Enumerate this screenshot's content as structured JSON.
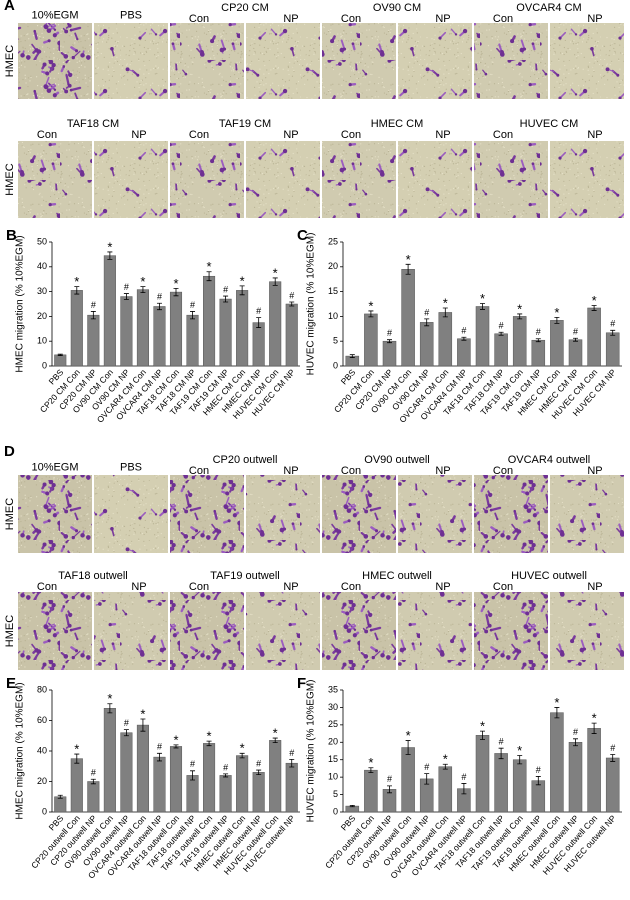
{
  "image_panels": [
    {
      "panel_label": "A",
      "rows": [
        {
          "row_label": "HMEC",
          "headers": [
            {
              "text": "10%EGM"
            },
            {
              "text": "PBS"
            },
            {
              "text": "CP20 CM",
              "sub": [
                "Con",
                "NP"
              ]
            },
            {
              "text": "OV90 CM",
              "sub": [
                "Con",
                "NP"
              ]
            },
            {
              "text": "OVCAR4 CM",
              "sub": [
                "Con",
                "NP"
              ]
            }
          ]
        },
        {
          "row_label": "HMEC",
          "headers": [
            {
              "text": "TAF18 CM",
              "sub": [
                "Con",
                "NP"
              ]
            },
            {
              "text": "TAF19 CM",
              "sub": [
                "Con",
                "NP"
              ]
            },
            {
              "text": "HMEC CM",
              "sub": [
                "Con",
                "NP"
              ]
            },
            {
              "text": "HUVEC CM",
              "sub": [
                "Con",
                "NP"
              ]
            }
          ]
        }
      ]
    },
    {
      "panel_label": "D",
      "rows": [
        {
          "row_label": "HMEC",
          "headers": [
            {
              "text": "10%EGM"
            },
            {
              "text": "PBS"
            },
            {
              "text": "CP20 outwell",
              "sub": [
                "Con",
                "NP"
              ]
            },
            {
              "text": "OV90 outwell",
              "sub": [
                "Con",
                "NP"
              ]
            },
            {
              "text": "OVCAR4 outwell",
              "sub": [
                "Con",
                "NP"
              ]
            }
          ]
        },
        {
          "row_label": "HMEC",
          "headers": [
            {
              "text": "TAF18 outwell",
              "sub": [
                "Con",
                "NP"
              ]
            },
            {
              "text": "TAF19 outwell",
              "sub": [
                "Con",
                "NP"
              ]
            },
            {
              "text": "HMEC outwell",
              "sub": [
                "Con",
                "NP"
              ]
            },
            {
              "text": "HUVEC outwell",
              "sub": [
                "Con",
                "NP"
              ]
            }
          ]
        }
      ]
    }
  ],
  "chart_data": [
    {
      "type": "bar",
      "panel_label": "B",
      "y_label": "HMEC migration (% 10%EGM)",
      "color": "#808080",
      "categories": [
        "PBS",
        "CP20 CM Con",
        "CP20 CM NP",
        "OV90 CM Con",
        "OV90 CM NP",
        "OVCAR4 CM Con",
        "OVCAR4 CM NP",
        "TAF18 CM Con",
        "TAF18 CM NP",
        "TAF19 CM Con",
        "TAF19 CM NP",
        "HMEC CM Con",
        "HMEC CM NP",
        "HUVEC CM Con",
        "HUVEC CM NP"
      ],
      "values": [
        4.5,
        30.5,
        20.5,
        44.5,
        28,
        30.8,
        24,
        29.8,
        20.5,
        36.2,
        27,
        30.5,
        17.5,
        34,
        25
      ],
      "errors": [
        0.3,
        1.5,
        1.5,
        1.5,
        1.2,
        1.2,
        1.3,
        1.5,
        1.5,
        1.8,
        1.2,
        1.8,
        2,
        1.5,
        0.8
      ],
      "markers": [
        null,
        "*",
        "#",
        "*",
        "#",
        "*",
        "#",
        "*",
        "#",
        "*",
        "#",
        "*",
        "#",
        "*",
        "#"
      ],
      "ylim": [
        0,
        50
      ],
      "yticks": [
        0,
        10,
        20,
        30,
        40,
        50
      ]
    },
    {
      "type": "bar",
      "panel_label": "C",
      "y_label": "HUVEC migration (% 10%EGM)",
      "color": "#808080",
      "categories": [
        "PBS",
        "CP20 CM Con",
        "CP20 CM NP",
        "OV90 CM Con",
        "OV90 CM NP",
        "OVCAR4 CM Con",
        "OVCAR4 CM NP",
        "TAF18 CM Con",
        "TAF18 CM NP",
        "TAF19 CM Con",
        "TAF19 CM NP",
        "HMEC CM Con",
        "HMEC CM NP",
        "HUVEC CM Con",
        "HUVEC CM NP"
      ],
      "values": [
        2,
        10.5,
        5,
        19.5,
        8.8,
        10.8,
        5.5,
        12,
        6.5,
        10,
        5.2,
        9.2,
        5.3,
        11.7,
        6.7
      ],
      "errors": [
        0.3,
        0.6,
        0.3,
        1,
        0.7,
        0.9,
        0.3,
        0.6,
        0.3,
        0.5,
        0.3,
        0.6,
        0.3,
        0.5,
        0.5
      ],
      "markers": [
        null,
        "*",
        "#",
        "*",
        "#",
        "*",
        "#",
        "*",
        "#",
        "*",
        "#",
        "*",
        "#",
        "*",
        "#"
      ],
      "ylim": [
        0,
        25
      ],
      "yticks": [
        0,
        5,
        10,
        15,
        20,
        25
      ]
    },
    {
      "type": "bar",
      "panel_label": "E",
      "y_label": "HMEC migration (% 10%EGM)",
      "color": "#808080",
      "categories": [
        "PBS",
        "CP20 outwell Con",
        "CP20 outwell NP",
        "OV90 outwell Con",
        "OV90 outwell NP",
        "OVCAR4 outwell Con",
        "OVCAR4 outwell NP",
        "TAF18 outwell Con",
        "TAF18 outwell NP",
        "TAF19 outwell Con",
        "TAF19 outwell NP",
        "HMEC outwell Con",
        "HMEC outwell NP",
        "HUVEC outwell Con",
        "HUVEC outwell NP"
      ],
      "values": [
        10,
        35,
        20,
        68,
        52,
        57,
        36,
        43,
        24,
        45,
        24,
        37,
        26,
        47,
        32
      ],
      "errors": [
        1,
        3,
        1.5,
        3,
        2,
        4,
        2.5,
        1,
        3,
        1.5,
        1,
        1.5,
        1.5,
        1.5,
        2.5
      ],
      "markers": [
        null,
        "*",
        "#",
        "*",
        "#",
        "*",
        "#",
        "*",
        "#",
        "*",
        "#",
        "*",
        "#",
        "*",
        "#"
      ],
      "ylim": [
        0,
        80
      ],
      "yticks": [
        0,
        20,
        40,
        60,
        80
      ]
    },
    {
      "type": "bar",
      "panel_label": "F",
      "y_label": "HUVEC migration (% 10%EGM)",
      "color": "#808080",
      "categories": [
        "PBS",
        "CP20 outwell Con",
        "CP20 outwell NP",
        "OV90 outwell Con",
        "OV90 outwell NP",
        "OVCAR4 outwell Con",
        "OVCAR4 outwell NP",
        "TAF18 outwell Con",
        "TAF18 outwell NP",
        "TAF19 outwell Con",
        "TAF19 outwell NP",
        "HMEC outwell Con",
        "HMEC outwell NP",
        "HUVEC outwell Con",
        "HUVEC outwell NP"
      ],
      "values": [
        1.7,
        12,
        6.5,
        18.5,
        9.5,
        13,
        6.7,
        22,
        16.8,
        15,
        9,
        28.5,
        20,
        24,
        15.5
      ],
      "errors": [
        0.2,
        0.7,
        1,
        2,
        1.5,
        0.7,
        1.5,
        1.2,
        1.5,
        1.2,
        1.2,
        1.5,
        1,
        1.5,
        1
      ],
      "markers": [
        null,
        "*",
        "#",
        "*",
        "#",
        "*",
        "#",
        "*",
        "#",
        "*",
        "#",
        "*",
        "#",
        "*",
        "#"
      ],
      "ylim": [
        0,
        35
      ],
      "yticks": [
        0,
        5,
        10,
        15,
        20,
        25,
        30,
        35
      ]
    }
  ]
}
